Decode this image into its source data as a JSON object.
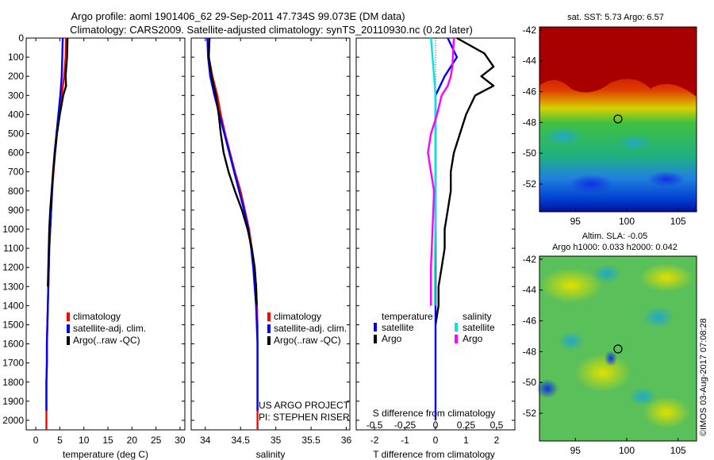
{
  "header": {
    "title_line1": "Argo profile: aoml 1901406_62 29-Sep-2011 47.734S 99.073E (DM data)",
    "title_line2": "Climatology: CARS2009. Satellite-adjusted climatology: synTS_20110930.nc (0.2d later)"
  },
  "colors": {
    "climatology": "#ff0000",
    "satellite": "#0000ff",
    "argo": "#000000",
    "argo_salinity_diff": "#ff00ff",
    "satellite_salinity_diff": "#00e5e5"
  },
  "depth_axis": {
    "ylim": [
      2050,
      0
    ],
    "ticks": [
      0,
      100,
      200,
      300,
      400,
      500,
      600,
      700,
      800,
      900,
      1000,
      1100,
      1200,
      1300,
      1400,
      1500,
      1600,
      1700,
      1800,
      1900,
      2000
    ]
  },
  "panel_temperature": {
    "xlabel": "temperature (deg C)",
    "xticks": [
      0,
      5,
      10,
      15,
      20,
      25,
      30
    ],
    "legend": [
      "climatology",
      "satellite-adj. clim.",
      "Argo(..raw -QC)"
    ]
  },
  "panel_salinity": {
    "xlabel": "salinity",
    "xticks": [
      "34",
      "34.5",
      "35",
      "35.5",
      "36"
    ],
    "legend": [
      "climatology",
      "satellite-adj. clim.",
      "Argo(..raw -QC)"
    ],
    "credit_line1": "US ARGO PROJECT",
    "credit_line2": "PI: STEPHEN RISER"
  },
  "panel_difference": {
    "top_label": "S difference from climatology",
    "top_ticks": [
      "-0.5",
      "-0.25",
      "0",
      "0.25",
      "0.5"
    ],
    "xlabel": "T difference from climatology",
    "bottom_ticks": [
      "-2",
      "-1",
      "0",
      "1",
      "2"
    ],
    "legend_temperature_title": "temperature",
    "legend_salinity_title": "salinity",
    "legend_satellite": "satellite",
    "legend_argo": "Argo"
  },
  "map_sst": {
    "title": "sat. SST: 5.73 Argo: 6.57",
    "xticks": [
      "95",
      "100",
      "105"
    ],
    "yticks": [
      "-42",
      "-44",
      "-46",
      "-48",
      "-50",
      "-52"
    ]
  },
  "map_sla": {
    "title_line1": "Altim. SLA: -0.05",
    "title_line2": "Argo h1000: 0.033 h2000: 0.042",
    "xticks": [
      "95",
      "100",
      "105"
    ],
    "yticks": [
      "-42",
      "-44",
      "-46",
      "-48",
      "-50",
      "-52"
    ]
  },
  "watermark": "©IMOS 03-Aug-2017 07:08:28",
  "chart_data": [
    {
      "type": "line",
      "name": "temperature profile",
      "xlabel": "temperature (deg C)",
      "ylabel": "",
      "xlim": [
        -2,
        31
      ],
      "ylim": [
        2050,
        0
      ],
      "series": [
        {
          "name": "climatology",
          "x": [
            6.3,
            6.2,
            5.9,
            5.4,
            4.9,
            4.4,
            4.0,
            3.7,
            3.4,
            3.2,
            3.0,
            2.8,
            2.7,
            2.6,
            2.5,
            2.4,
            2.3,
            2.3,
            2.2,
            2.2,
            2.2
          ],
          "y": [
            0,
            100,
            200,
            300,
            400,
            500,
            600,
            700,
            800,
            900,
            1000,
            1100,
            1200,
            1300,
            1400,
            1500,
            1600,
            1700,
            1800,
            1900,
            2050
          ]
        },
        {
          "name": "satellite-adj. clim.",
          "x": [
            5.6,
            5.5,
            5.4,
            5.1,
            4.7,
            4.3,
            3.9,
            3.6,
            3.4,
            3.2,
            3.0,
            2.8,
            2.7,
            2.6,
            2.5,
            2.4,
            2.3,
            2.3,
            2.2,
            2.2
          ],
          "y": [
            0,
            100,
            200,
            300,
            400,
            500,
            600,
            700,
            800,
            900,
            1000,
            1100,
            1200,
            1300,
            1400,
            1500,
            1600,
            1700,
            1800,
            1950
          ]
        },
        {
          "name": "Argo(..raw -QC)",
          "x": [
            6.6,
            6.5,
            6.2,
            6.3,
            5.7,
            5.0,
            4.4,
            4.0,
            3.6,
            3.3,
            3.0,
            2.8,
            2.7,
            2.6,
            2.5
          ],
          "y": [
            0,
            100,
            200,
            250,
            300,
            400,
            500,
            600,
            700,
            800,
            900,
            1000,
            1100,
            1200,
            1300
          ]
        }
      ]
    },
    {
      "type": "line",
      "name": "salinity profile",
      "xlabel": "salinity",
      "ylabel": "",
      "xlim": [
        33.8,
        36.05
      ],
      "ylim": [
        2050,
        0
      ],
      "series": [
        {
          "name": "climatology",
          "x": [
            34.03,
            34.05,
            34.1,
            34.17,
            34.22,
            34.28,
            34.35,
            34.42,
            34.5,
            34.56,
            34.62,
            34.66,
            34.7,
            34.72,
            34.73,
            34.74,
            34.74,
            34.74,
            34.74,
            34.74
          ],
          "y": [
            0,
            100,
            200,
            300,
            400,
            500,
            600,
            700,
            800,
            900,
            1000,
            1100,
            1200,
            1300,
            1400,
            1500,
            1600,
            1700,
            1800,
            2050
          ]
        },
        {
          "name": "satellite-adj. clim.",
          "x": [
            34.03,
            34.04,
            34.07,
            34.13,
            34.2,
            34.27,
            34.34,
            34.41,
            34.48,
            34.55,
            34.61,
            34.65,
            34.68,
            34.7,
            34.72,
            34.73,
            34.74,
            34.74,
            34.74,
            34.74
          ],
          "y": [
            0,
            100,
            200,
            300,
            400,
            500,
            600,
            700,
            800,
            900,
            1000,
            1100,
            1200,
            1300,
            1400,
            1500,
            1600,
            1700,
            1800,
            1950
          ]
        },
        {
          "name": "Argo(..raw -QC)",
          "x": [
            34.06,
            34.05,
            34.09,
            34.15,
            34.19,
            34.22,
            34.26,
            34.33,
            34.42,
            34.52,
            34.6,
            34.66,
            34.7,
            34.72,
            34.73
          ],
          "y": [
            0,
            100,
            200,
            300,
            400,
            500,
            600,
            700,
            800,
            900,
            1000,
            1100,
            1200,
            1300,
            1400
          ]
        }
      ]
    },
    {
      "type": "line",
      "name": "difference from climatology",
      "xlabel": "T difference from climatology",
      "top_axis_label": "S difference from climatology",
      "xlim": [
        -2.6,
        2.6
      ],
      "ylim": [
        2050,
        0
      ],
      "series": [
        {
          "name": "temperature Argo",
          "x": [
            0.7,
            1.6,
            1.9,
            1.5,
            1.9,
            1.3,
            1.0,
            0.8,
            0.6,
            0.5,
            0.5,
            0.4,
            0.3,
            0.3,
            0.2,
            0.1,
            0.1,
            0.0
          ],
          "y": [
            0,
            80,
            150,
            200,
            250,
            300,
            400,
            500,
            600,
            700,
            800,
            900,
            1000,
            1100,
            1200,
            1300,
            1400,
            1500
          ]
        },
        {
          "name": "temperature satellite",
          "x": [
            0.4,
            0.7,
            0.3,
            0.0,
            0.0,
            0.0,
            0.0,
            0.0,
            0.0,
            0.0,
            0.0,
            0.0,
            0.0
          ],
          "y": [
            0,
            100,
            200,
            300,
            500,
            700,
            900,
            1100,
            1300,
            1500,
            1700,
            1900,
            2000
          ]
        },
        {
          "name": "salinity satellite",
          "x": [
            -0.15,
            -0.1,
            -0.05,
            0.0,
            0.0,
            0.0,
            -0.02,
            -0.02
          ],
          "y": [
            0,
            100,
            200,
            300,
            600,
            900,
            1200,
            1400
          ]
        },
        {
          "name": "salinity Argo",
          "x": [
            0.6,
            0.55,
            0.5,
            0.4,
            0.2,
            0.05,
            -0.15,
            -0.25,
            -0.15,
            -0.05,
            -0.1,
            -0.15,
            -0.15
          ],
          "y": [
            0,
            150,
            200,
            250,
            300,
            400,
            500,
            600,
            700,
            800,
            1000,
            1200,
            1400
          ]
        }
      ]
    }
  ]
}
